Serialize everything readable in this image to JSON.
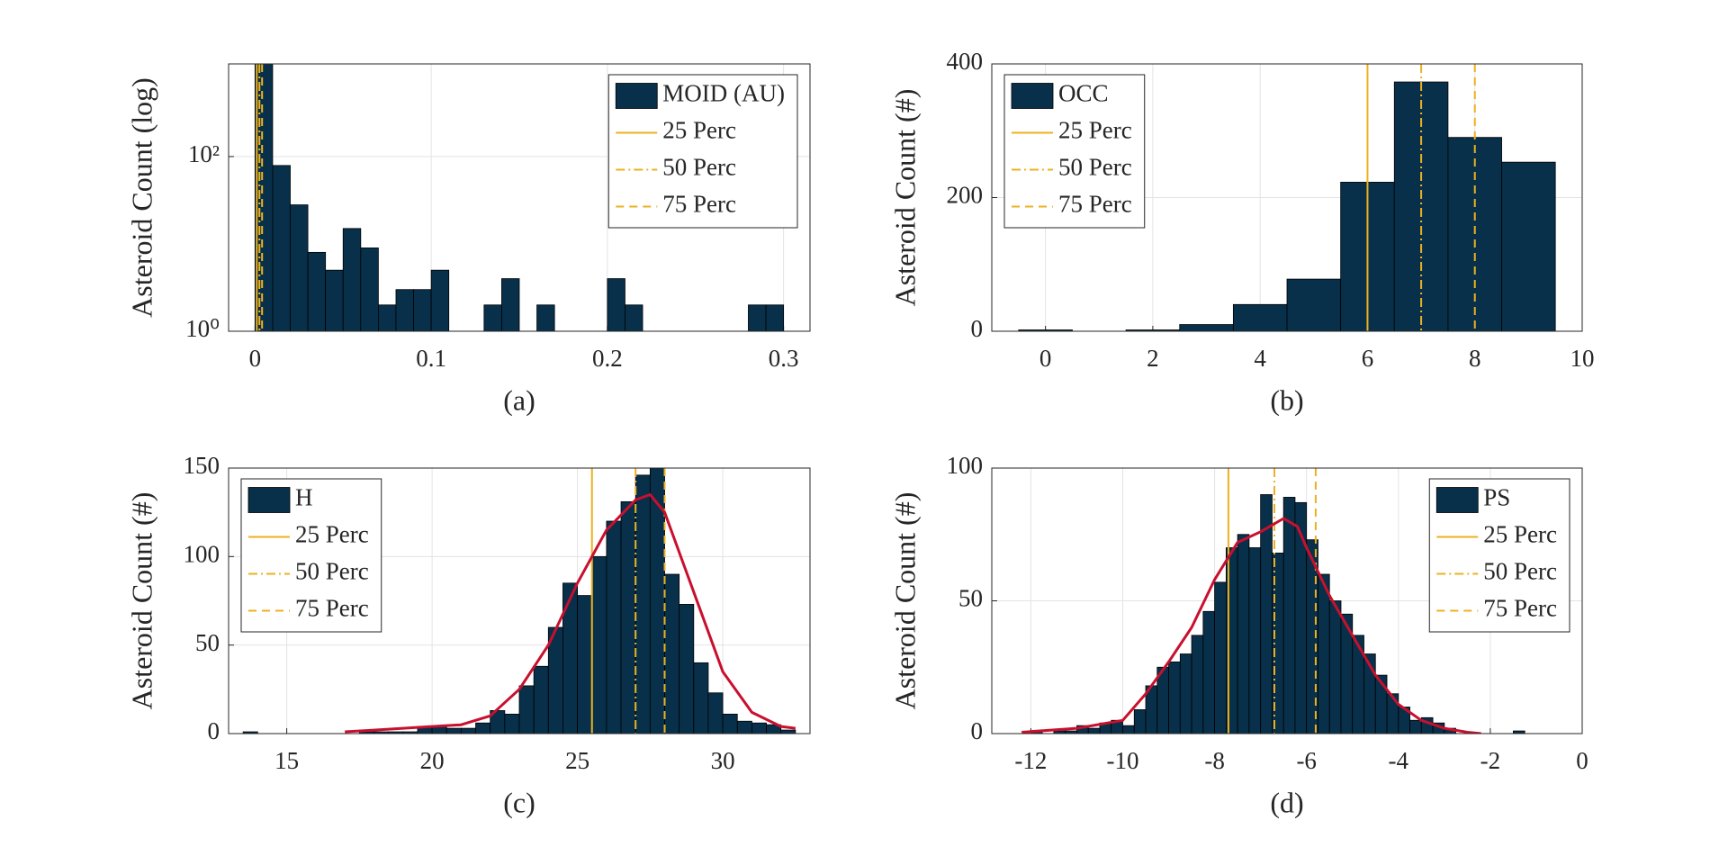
{
  "chart_data": [
    {
      "type": "histogram",
      "ylabel": "Asteroid Count (log)",
      "caption": "(a)",
      "log_y": true,
      "grid": true,
      "legend": "northeast",
      "xlim": [
        -0.015,
        0.315
      ],
      "xticks": [
        0,
        0.1,
        0.2,
        0.3
      ],
      "ylim": [
        1,
        1150
      ],
      "yticks": [
        {
          "value": 1,
          "label": "10⁰"
        },
        {
          "value": 100,
          "label": "10²"
        }
      ],
      "series": [
        {
          "name": "MOID (AU)",
          "color": "#08304a",
          "bins": [
            0,
            0.01,
            0.02,
            0.03,
            0.04,
            0.05,
            0.06,
            0.07,
            0.08,
            0.09,
            0.1,
            0.11,
            0.12,
            0.13,
            0.14,
            0.15,
            0.16,
            0.17,
            0.18,
            0.19,
            0.2,
            0.21,
            0.22,
            0.23,
            0.24,
            0.25,
            0.26,
            0.27,
            0.28,
            0.29,
            0.3
          ],
          "values": [
            1200,
            79,
            28,
            8,
            5,
            15,
            9,
            2,
            3,
            3,
            5,
            0,
            0,
            2,
            4,
            0,
            2,
            0,
            0,
            0,
            4,
            2,
            0,
            0,
            0,
            0,
            0,
            0,
            2,
            2
          ]
        }
      ],
      "lines": [
        {
          "name": "25 Perc",
          "x": 0.001,
          "style": "solid",
          "color": "#edb120"
        },
        {
          "name": "50 Perc",
          "x": 0.0025,
          "style": "dashdot",
          "color": "#edb120"
        },
        {
          "name": "75 Perc",
          "x": 0.004,
          "style": "dashed",
          "color": "#edb120"
        }
      ]
    },
    {
      "type": "histogram",
      "ylabel": "Asteroid Count (#)",
      "caption": "(b)",
      "log_y": false,
      "grid": true,
      "legend": "northwest",
      "xlim": [
        -1,
        10
      ],
      "xticks": [
        0,
        2,
        4,
        6,
        8,
        10
      ],
      "ylim": [
        0,
        400
      ],
      "yticks": [
        0,
        200,
        400
      ],
      "series": [
        {
          "name": "OCC",
          "color": "#08304a",
          "bins": [
            -0.5,
            0.5,
            1.5,
            2.5,
            3.5,
            4.5,
            5.5,
            6.5,
            7.5,
            8.5,
            9.5
          ],
          "values": [
            2,
            0,
            2,
            10,
            40,
            78,
            223,
            373,
            290,
            253
          ]
        }
      ],
      "lines": [
        {
          "name": "25 Perc",
          "x": 6,
          "style": "solid",
          "color": "#edb120"
        },
        {
          "name": "50 Perc",
          "x": 7,
          "style": "dashdot",
          "color": "#edb120"
        },
        {
          "name": "75 Perc",
          "x": 8,
          "style": "dashed",
          "color": "#edb120"
        }
      ]
    },
    {
      "type": "histogram",
      "ylabel": "Asteroid Count (#)",
      "caption": "(c)",
      "log_y": false,
      "grid": true,
      "legend": "northwest",
      "xlim": [
        13,
        33
      ],
      "xticks": [
        15,
        20,
        25,
        30
      ],
      "ylim": [
        0,
        150
      ],
      "yticks": [
        0,
        50,
        100,
        150
      ],
      "series": [
        {
          "name": "H",
          "color": "#08304a",
          "bins": [
            13.5,
            14,
            14.5,
            15,
            15.5,
            16,
            16.5,
            17,
            17.5,
            18,
            18.5,
            19,
            19.5,
            20,
            20.5,
            21,
            21.5,
            22,
            22.5,
            23,
            23.5,
            24,
            24.5,
            25,
            25.5,
            26,
            26.5,
            27,
            27.5,
            28,
            28.5,
            29,
            29.5,
            30,
            30.5,
            31,
            31.5,
            32,
            32.5
          ],
          "values": [
            1,
            0,
            0,
            0,
            0,
            0,
            0,
            0,
            1,
            1,
            1,
            1,
            4,
            4,
            3,
            3,
            6,
            13,
            11,
            27,
            38,
            60,
            85,
            78,
            100,
            120,
            131,
            146,
            152,
            90,
            73,
            40,
            23,
            11,
            7,
            6,
            5,
            2
          ]
        }
      ],
      "lines": [
        {
          "name": "25 Perc",
          "x": 25.5,
          "style": "solid",
          "color": "#edb120"
        },
        {
          "name": "50 Perc",
          "x": 27,
          "style": "dashdot",
          "color": "#edb120"
        },
        {
          "name": "75 Perc",
          "x": 28,
          "style": "dashed",
          "color": "#edb120"
        }
      ],
      "fit": {
        "color": "#c8102e",
        "x": [
          17,
          18,
          19,
          20,
          21,
          22,
          23,
          24,
          25,
          26,
          27,
          27.5,
          28,
          29,
          30,
          31,
          32,
          32.5
        ],
        "values": [
          1,
          2,
          3,
          4,
          5,
          10,
          25,
          50,
          85,
          115,
          132,
          135,
          125,
          80,
          35,
          12,
          4,
          3
        ]
      }
    },
    {
      "type": "histogram",
      "ylabel": "Asteroid Count (#)",
      "caption": "(d)",
      "log_y": false,
      "grid": true,
      "legend": "northeast",
      "xlim": [
        -12.85,
        0
      ],
      "xticks": [
        -12,
        -10,
        -8,
        -6,
        -4,
        -2,
        0
      ],
      "ylim": [
        0,
        100
      ],
      "yticks": [
        0,
        50,
        100
      ],
      "series": [
        {
          "name": "PS",
          "color": "#08304a",
          "bins": [
            -12,
            -11.75,
            -11.5,
            -11.25,
            -11,
            -10.75,
            -10.5,
            -10.25,
            -10,
            -9.75,
            -9.5,
            -9.25,
            -9,
            -8.75,
            -8.5,
            -8.25,
            -8,
            -7.75,
            -7.5,
            -7.25,
            -7,
            -6.75,
            -6.5,
            -6.25,
            -6,
            -5.75,
            -5.5,
            -5.25,
            -5,
            -4.75,
            -4.5,
            -4.25,
            -4,
            -3.75,
            -3.5,
            -3.25,
            -3,
            -2.75,
            -2.5,
            -2.25,
            -2,
            -1.75,
            -1.5,
            -1.25
          ],
          "values": [
            1,
            0,
            1,
            1,
            3,
            2,
            4,
            5,
            3,
            9,
            18,
            25,
            27,
            30,
            37,
            46,
            57,
            70,
            75,
            70,
            90,
            68,
            89,
            87,
            73,
            60,
            50,
            45,
            37,
            30,
            22,
            15,
            10,
            5,
            6,
            4,
            2,
            0,
            0,
            0,
            0,
            0,
            1
          ]
        }
      ],
      "lines": [
        {
          "name": "25 Perc",
          "x": -7.7,
          "style": "solid",
          "color": "#edb120"
        },
        {
          "name": "50 Perc",
          "x": -6.7,
          "style": "dashdot",
          "color": "#edb120"
        },
        {
          "name": "75 Perc",
          "x": -5.8,
          "style": "dashed",
          "color": "#edb120"
        }
      ],
      "fit": {
        "color": "#c8102e",
        "x": [
          -12.2,
          -11,
          -10,
          -9.5,
          -9,
          -8.5,
          -8,
          -7.5,
          -7,
          -6.5,
          -6.2,
          -6,
          -5.5,
          -5,
          -4.5,
          -4,
          -3.5,
          -3,
          -2.5,
          -2.2
        ],
        "values": [
          0.5,
          2,
          5,
          15,
          27,
          40,
          58,
          72,
          76,
          81,
          78,
          70,
          52,
          37,
          22,
          11,
          5,
          2,
          0.5,
          0
        ]
      }
    }
  ]
}
